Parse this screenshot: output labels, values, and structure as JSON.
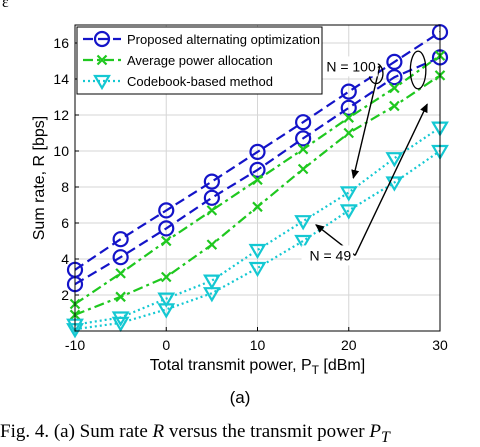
{
  "corner_mark": "ε",
  "sublabel": "(a)",
  "caption": {
    "text": "Fig. 4.  (a) Sum rate R versus the transmit power P",
    "prefix": "Fig. 4.  (a) Sum rate ",
    "var1": "R",
    "middle": " versus the transmit power ",
    "var2": "P",
    "var2_sub": "T"
  },
  "chart_data": {
    "type": "line",
    "title": "",
    "xlabel": "Total transmit power, P",
    "xlabel_sub": "T",
    "xlabel_unit": " [dBm]",
    "ylabel": "Sum rate, R [bps]",
    "xlim": [
      -10,
      30
    ],
    "ylim": [
      0,
      17
    ],
    "xticks": [
      -10,
      0,
      10,
      20,
      30
    ],
    "xtick_labels": [
      "-10",
      "0",
      "10",
      "20",
      "30"
    ],
    "yticks": [
      2,
      4,
      6,
      8,
      10,
      12,
      14,
      16
    ],
    "ytick_labels": [
      "2",
      "4",
      "6",
      "8",
      "10",
      "12",
      "14",
      "16"
    ],
    "grid": true,
    "legend_position": "top-left",
    "series": [
      {
        "name": "Proposed alternating optimization",
        "group": "N = 100",
        "show_in_legend": true,
        "marker": "circle",
        "line": "dashed",
        "color": "#1414c8",
        "x": [
          -10,
          -5,
          0,
          5,
          10,
          15,
          20,
          25,
          30
        ],
        "y": [
          3.4,
          5.1,
          6.7,
          8.3,
          9.95,
          11.6,
          13.3,
          14.95,
          16.6
        ]
      },
      {
        "name": "Proposed alternating optimization",
        "group": "N = 49",
        "show_in_legend": false,
        "marker": "circle",
        "line": "dashed",
        "color": "#1414c8",
        "x": [
          -10,
          -5,
          0,
          5,
          10,
          15,
          20,
          25,
          30
        ],
        "y": [
          2.6,
          4.1,
          5.7,
          7.4,
          8.95,
          10.7,
          12.4,
          14.1,
          15.2
        ]
      },
      {
        "name": "Average power allocation",
        "group": "N = 100",
        "show_in_legend": true,
        "marker": "x",
        "line": "dashdot",
        "color": "#1fc81f",
        "x": [
          -10,
          -5,
          0,
          5,
          10,
          15,
          20,
          25,
          30
        ],
        "y": [
          1.5,
          3.2,
          5.0,
          6.7,
          8.4,
          10.1,
          11.85,
          13.5,
          15.3
        ]
      },
      {
        "name": "Average power allocation",
        "group": "N = 49",
        "show_in_legend": false,
        "marker": "x",
        "line": "dashdot",
        "color": "#1fc81f",
        "x": [
          -10,
          -5,
          0,
          5,
          10,
          15,
          20,
          25,
          30
        ],
        "y": [
          0.9,
          1.9,
          3.0,
          4.8,
          6.9,
          9.0,
          11.0,
          12.5,
          14.2
        ]
      },
      {
        "name": "Codebook-based method",
        "group": "N = 100",
        "show_in_legend": true,
        "marker": "triangle-down",
        "line": "dotted",
        "color": "#14c8d2",
        "x": [
          -10,
          -5,
          0,
          5,
          10,
          15,
          20,
          25,
          30
        ],
        "y": [
          0.35,
          0.75,
          1.8,
          2.8,
          4.5,
          6.1,
          7.7,
          9.6,
          11.3
        ]
      },
      {
        "name": "Codebook-based method",
        "group": "N = 49",
        "show_in_legend": false,
        "marker": "triangle-down",
        "line": "dotted",
        "color": "#14c8d2",
        "x": [
          -10,
          -5,
          0,
          5,
          10,
          15,
          20,
          25,
          30
        ],
        "y": [
          0.1,
          0.45,
          1.2,
          2.1,
          3.5,
          5.0,
          6.7,
          8.25,
          10.0
        ]
      }
    ],
    "annotations": [
      {
        "text": "N = 100",
        "at": [
          23.4,
          14.7
        ],
        "arrows_to": [
          [
            20.5,
            8.5
          ],
          [
            22.2,
            14.4
          ]
        ],
        "ellipse": {
          "center": [
            23.0,
            14.3
          ],
          "rx": 0.75,
          "ry": 0.55
        }
      },
      {
        "text": "N = 49",
        "at": [
          20.7,
          4.2
        ],
        "arrows_to": [
          [
            16.4,
            5.9
          ],
          [
            28.6,
            12.6
          ]
        ],
        "ellipse": {
          "center": [
            27.6,
            14.5
          ],
          "rx": 0.85,
          "ry": 1.05
        }
      }
    ]
  }
}
